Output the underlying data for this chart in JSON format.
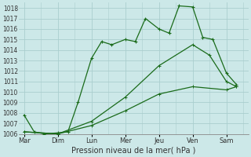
{
  "title": "",
  "xlabel": "Pression niveau de la mer( hPa )",
  "ylabel": "",
  "bg_color": "#cce8e8",
  "grid_color": "#aacece",
  "line_color": "#1a6b1a",
  "ylim": [
    1006,
    1018.5
  ],
  "yticks": [
    1006,
    1007,
    1008,
    1009,
    1010,
    1011,
    1012,
    1013,
    1014,
    1015,
    1016,
    1017,
    1018
  ],
  "xtick_labels": [
    "Mar",
    "Dim",
    "Lun",
    "Mer",
    "Jeu",
    "Ven",
    "Sam"
  ],
  "series1_x": [
    0,
    0.3,
    0.6,
    1.0,
    1.3,
    1.6,
    2.0,
    2.3,
    2.6,
    3.0,
    3.3,
    3.6,
    4.0,
    4.3,
    4.6,
    5.0,
    5.3,
    5.6,
    6.0,
    6.3
  ],
  "series1_y": [
    1007.8,
    1006.2,
    1006.0,
    1006.1,
    1006.2,
    1009.0,
    1013.2,
    1014.8,
    1014.5,
    1015.0,
    1014.8,
    1017.0,
    1016.0,
    1015.6,
    1018.2,
    1018.1,
    1015.2,
    1015.0,
    1011.8,
    1010.7
  ],
  "series2_x": [
    0,
    1,
    2,
    3,
    4,
    5,
    6,
    6.3
  ],
  "series2_y": [
    1006.2,
    1006.0,
    1006.8,
    1008.2,
    1009.8,
    1010.5,
    1010.2,
    1010.5
  ],
  "series3_x": [
    0,
    1,
    2,
    3,
    4,
    5,
    5.5,
    6,
    6.3
  ],
  "series3_y": [
    1006.2,
    1006.0,
    1007.2,
    1009.5,
    1012.5,
    1014.5,
    1013.5,
    1011.0,
    1010.5
  ]
}
